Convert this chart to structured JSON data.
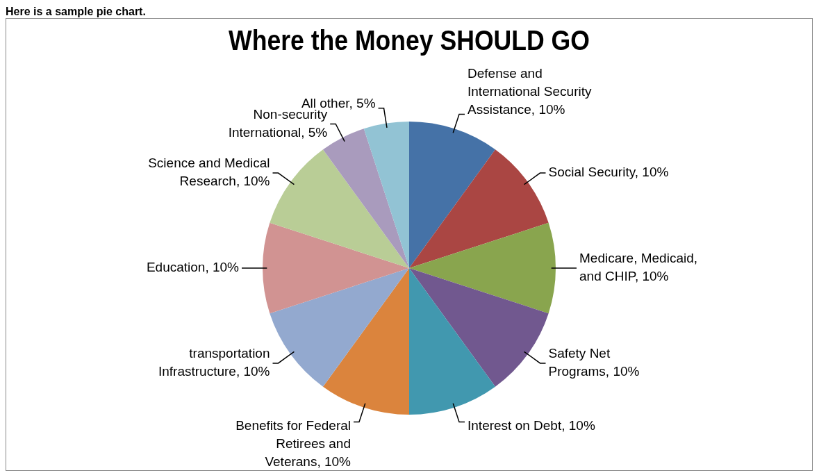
{
  "chart_data": {
    "type": "pie",
    "title": "Where the Money SHOULD GO",
    "annotations": [
      "Here is a sample pie chart."
    ],
    "categories": [
      "Defense and International Security Assistance",
      "Social Security",
      "Medicare, Medicaid, and CHIP",
      "Safety Net Programs",
      "Interest on Debt",
      "Benefits for Federal Retirees and Veterans",
      "transportation Infrastructure",
      "Education",
      "Science and Medical Research",
      "Non-security International",
      "All other"
    ],
    "values": [
      10,
      10,
      10,
      10,
      10,
      10,
      10,
      10,
      10,
      5,
      5
    ],
    "colors": [
      "#4572a7",
      "#aa4643",
      "#89a54e",
      "#71588f",
      "#4198af",
      "#db843d",
      "#93a9cf",
      "#d19392",
      "#b9cd96",
      "#a99bbd",
      "#92c3d4"
    ],
    "value_labels": [
      "10%",
      "10%",
      "10%",
      "10%",
      "10%",
      "10%",
      "10%",
      "10%",
      "10%",
      "5%",
      "5%"
    ],
    "legend": false
  }
}
